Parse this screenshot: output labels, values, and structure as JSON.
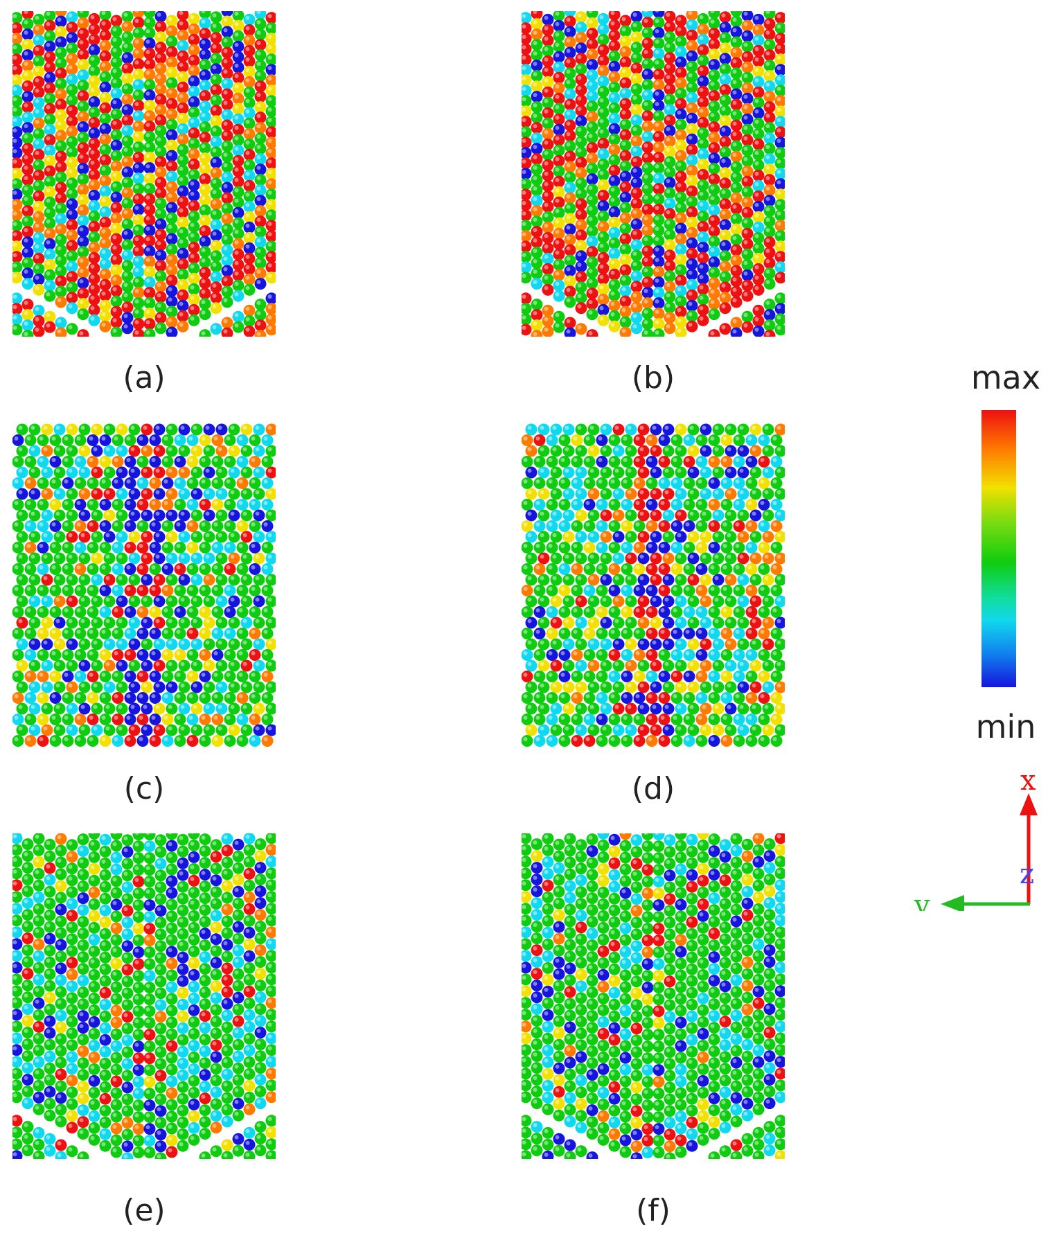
{
  "panels": [
    {
      "id": "a",
      "label": "(a)",
      "pattern": "mixed-diagonal"
    },
    {
      "id": "b",
      "label": "(b)",
      "pattern": "mixed-diagonal"
    },
    {
      "id": "c",
      "label": "(c)",
      "pattern": "horizontal-rows-vertical-boundary"
    },
    {
      "id": "d",
      "label": "(d)",
      "pattern": "horizontal-rows-vertical-boundary"
    },
    {
      "id": "e",
      "label": "(e)",
      "pattern": "chevron"
    },
    {
      "id": "f",
      "label": "(f)",
      "pattern": "chevron"
    }
  ],
  "colorbar": {
    "max_label": "max",
    "min_label": "min",
    "colors": [
      "#ee1111",
      "#ff7a00",
      "#f2e000",
      "#10cc10",
      "#10d8ee",
      "#1515dd"
    ]
  },
  "axes": {
    "x_label": "x",
    "y_label": "y",
    "z_label": "z",
    "x_color": "#ee1111",
    "y_color": "#22bb22",
    "z_color": "#4444ee"
  }
}
